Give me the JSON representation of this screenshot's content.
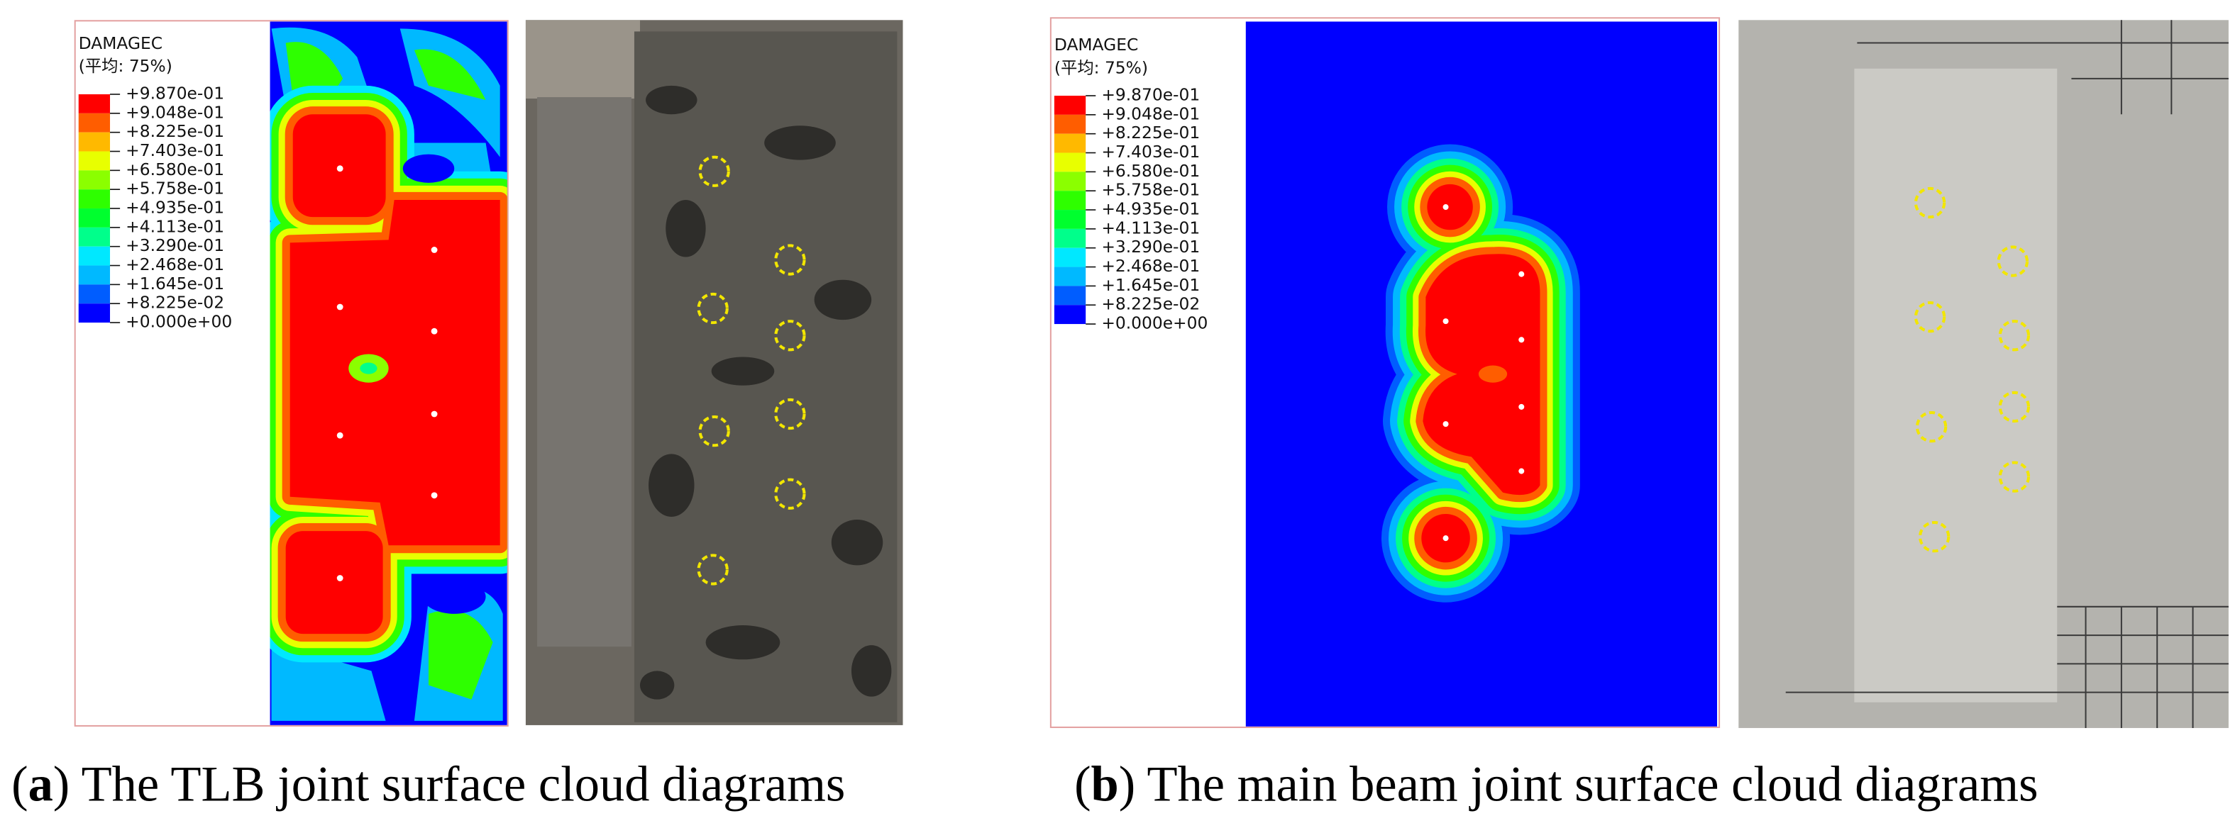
{
  "panels": [
    {
      "legend": {
        "title": "DAMAGEC",
        "subtitle": "(平均: 75%)",
        "labels": [
          "+9.870e-01",
          "+9.048e-01",
          "+8.225e-01",
          "+7.403e-01",
          "+6.580e-01",
          "+5.758e-01",
          "+4.935e-01",
          "+4.113e-01",
          "+3.290e-01",
          "+2.468e-01",
          "+1.645e-01",
          "+8.225e-02",
          "+0.000e+00"
        ],
        "colors": [
          "#ff0000",
          "#ff5d00",
          "#ffb900",
          "#e8ff00",
          "#8bff00",
          "#2eff00",
          "#00ff2e",
          "#00ff8b",
          "#00e8ff",
          "#00b9ff",
          "#005dff",
          "#0000ff"
        ]
      },
      "caption": {
        "open": "(",
        "letter": "a",
        "text": ") The TLB joint surface cloud diagrams"
      }
    },
    {
      "legend": {
        "title": "DAMAGEC",
        "subtitle": "(平均: 75%)",
        "labels": [
          "+9.870e-01",
          "+9.048e-01",
          "+8.225e-01",
          "+7.403e-01",
          "+6.580e-01",
          "+5.758e-01",
          "+4.935e-01",
          "+4.113e-01",
          "+3.290e-01",
          "+2.468e-01",
          "+1.645e-01",
          "+8.225e-02",
          "+0.000e+00"
        ],
        "colors": [
          "#ff0000",
          "#ff5d00",
          "#ffb900",
          "#e8ff00",
          "#8bff00",
          "#2eff00",
          "#00ff2e",
          "#00ff8b",
          "#00e8ff",
          "#00b9ff",
          "#005dff",
          "#0000ff"
        ]
      },
      "caption": {
        "open": "(",
        "letter": "b",
        "text": ") The main beam joint surface cloud diagrams"
      }
    }
  ]
}
